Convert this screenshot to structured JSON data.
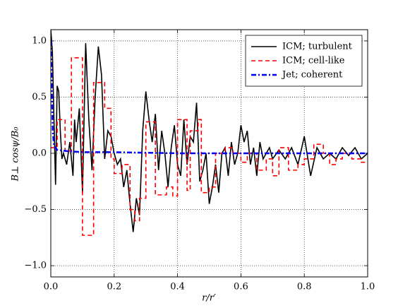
{
  "chart_data": {
    "type": "line",
    "xlabel": "r/r′",
    "ylabel": "B⊥ cosψ/B₀",
    "xlim": [
      0,
      1.0
    ],
    "ylim": [
      -1.1,
      1.1
    ],
    "xticks": [
      {
        "value": 0,
        "label": "0.0"
      },
      0.2,
      0.4,
      0.6,
      0.8,
      {
        "value": 1.0,
        "label": "1.0"
      }
    ],
    "yticks": [
      {
        "value": -1.0,
        "label": "−1.0"
      },
      {
        "value": -0.5,
        "label": "−0.5"
      },
      {
        "value": 0,
        "label": "0.0"
      },
      0.5,
      {
        "value": 1.0,
        "label": "1.0"
      }
    ],
    "grid": true,
    "legend": "upper right",
    "series": [
      {
        "name": "ICM; turbulent",
        "color": "#000000",
        "dash": "solid",
        "drawstyle": "default",
        "x": [
          0,
          0.005,
          0.01,
          0.015,
          0.02,
          0.025,
          0.03,
          0.035,
          0.04,
          0.05,
          0.06,
          0.07,
          0.075,
          0.08,
          0.09,
          0.1,
          0.11,
          0.12,
          0.13,
          0.14,
          0.15,
          0.16,
          0.17,
          0.18,
          0.19,
          0.2,
          0.21,
          0.22,
          0.23,
          0.24,
          0.25,
          0.26,
          0.27,
          0.28,
          0.29,
          0.3,
          0.31,
          0.32,
          0.33,
          0.34,
          0.35,
          0.36,
          0.37,
          0.38,
          0.39,
          0.4,
          0.41,
          0.42,
          0.43,
          0.44,
          0.45,
          0.46,
          0.47,
          0.48,
          0.49,
          0.5,
          0.51,
          0.52,
          0.53,
          0.54,
          0.55,
          0.56,
          0.57,
          0.58,
          0.59,
          0.6,
          0.61,
          0.62,
          0.63,
          0.64,
          0.65,
          0.66,
          0.67,
          0.68,
          0.69,
          0.7,
          0.72,
          0.74,
          0.76,
          0.78,
          0.8,
          0.82,
          0.84,
          0.86,
          0.88,
          0.9,
          0.92,
          0.94,
          0.96,
          0.98,
          1.0
        ],
        "values": [
          1.1,
          0.9,
          0.3,
          -0.28,
          0.6,
          0.55,
          0.2,
          -0.05,
          0.0,
          -0.1,
          0.1,
          -0.2,
          0.3,
          0.1,
          0.4,
          -0.35,
          0.98,
          0.3,
          -0.15,
          0.5,
          0.95,
          0.7,
          -0.05,
          0.2,
          0.15,
          0.0,
          -0.1,
          -0.05,
          -0.3,
          -0.15,
          -0.45,
          -0.7,
          -0.4,
          -0.55,
          0.2,
          0.55,
          0.3,
          0.1,
          0.35,
          -0.15,
          0.2,
          0.0,
          -0.3,
          0.05,
          0.25,
          -0.1,
          -0.2,
          0.3,
          -0.1,
          0.15,
          0.1,
          0.45,
          -0.25,
          -0.15,
          0.0,
          -0.45,
          -0.3,
          -0.1,
          -0.35,
          0.0,
          0.05,
          -0.2,
          0.1,
          -0.1,
          0.0,
          0.25,
          0.1,
          0.2,
          -0.1,
          0.05,
          -0.2,
          0.1,
          -0.05,
          0.0,
          0.05,
          -0.05,
          0.03,
          -0.05,
          0.05,
          -0.1,
          0.15,
          -0.2,
          0.05,
          -0.05,
          0.0,
          -0.05,
          0.05,
          -0.02,
          0.05,
          -0.05,
          0.0
        ]
      },
      {
        "name": "ICM; cell-like",
        "color": "#ff0000",
        "dash": "dashed",
        "drawstyle": "steps-post",
        "x": [
          0,
          0.02,
          0.045,
          0.065,
          0.1,
          0.135,
          0.17,
          0.19,
          0.2,
          0.225,
          0.25,
          0.265,
          0.28,
          0.3,
          0.33,
          0.365,
          0.385,
          0.4,
          0.43,
          0.44,
          0.465,
          0.475,
          0.5,
          0.52,
          0.55,
          0.575,
          0.6,
          0.62,
          0.65,
          0.68,
          0.7,
          0.72,
          0.75,
          0.78,
          0.8,
          0.83,
          0.86,
          0.88,
          0.9,
          0.92,
          0.95,
          0.98,
          1.0
        ],
        "values": [
          0.05,
          0.3,
          0.02,
          0.85,
          -0.73,
          0.63,
          0.4,
          -0.05,
          -0.18,
          -0.1,
          -0.5,
          -0.6,
          -0.4,
          0.28,
          -0.37,
          -0.3,
          -0.38,
          0.3,
          -0.33,
          0.2,
          0.3,
          -0.35,
          -0.3,
          0.0,
          0.05,
          0.0,
          -0.08,
          0.0,
          -0.15,
          -0.05,
          -0.2,
          0.05,
          -0.15,
          -0.1,
          -0.05,
          0.08,
          0.0,
          -0.1,
          -0.05,
          0.0,
          -0.05,
          -0.08,
          -0.08
        ]
      },
      {
        "name": "Jet; coherent",
        "color": "#0000ff",
        "dash": "dashdot",
        "drawstyle": "default",
        "x": [
          0,
          0.003,
          0.006,
          0.01,
          0.02,
          0.05,
          0.1,
          0.2,
          0.4,
          0.6,
          0.8,
          1.0
        ],
        "values": [
          1.0,
          0.6,
          0.2,
          0.07,
          0.03,
          0.02,
          0.01,
          0.01,
          0.0,
          0.0,
          0.0,
          0.0
        ]
      }
    ]
  }
}
